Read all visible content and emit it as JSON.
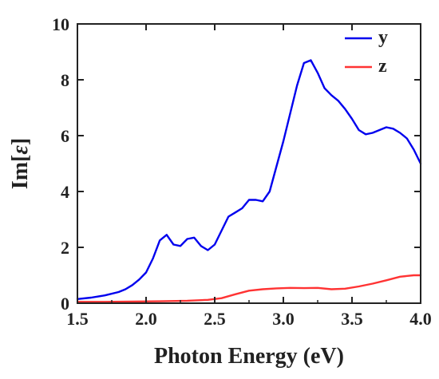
{
  "chart_data": {
    "type": "line",
    "title": "",
    "xlabel": "Photon Energy (eV)",
    "ylabel": "Im[ε]",
    "ylabel_parts": {
      "prefix": "Im[",
      "symbol": "ε",
      "suffix": "]"
    },
    "xlim": [
      1.5,
      4.0
    ],
    "ylim": [
      0,
      10
    ],
    "x_ticks": [
      "1.5",
      "2.0",
      "2.5",
      "3.0",
      "3.5",
      "4.0"
    ],
    "y_ticks": [
      "0",
      "2",
      "4",
      "6",
      "8",
      "10"
    ],
    "grid": false,
    "legend_position": "top-right",
    "series": [
      {
        "name": "y",
        "color": "#0000ee",
        "x": [
          1.5,
          1.6,
          1.7,
          1.8,
          1.85,
          1.9,
          1.95,
          2.0,
          2.05,
          2.1,
          2.15,
          2.2,
          2.25,
          2.3,
          2.35,
          2.4,
          2.45,
          2.5,
          2.55,
          2.6,
          2.65,
          2.7,
          2.75,
          2.8,
          2.85,
          2.9,
          2.95,
          3.0,
          3.05,
          3.1,
          3.15,
          3.2,
          3.25,
          3.3,
          3.35,
          3.4,
          3.45,
          3.5,
          3.55,
          3.6,
          3.65,
          3.7,
          3.75,
          3.8,
          3.85,
          3.9,
          3.95,
          4.0
        ],
        "values": [
          0.15,
          0.2,
          0.28,
          0.4,
          0.5,
          0.65,
          0.85,
          1.1,
          1.6,
          2.25,
          2.45,
          2.1,
          2.05,
          2.3,
          2.35,
          2.05,
          1.9,
          2.1,
          2.6,
          3.1,
          3.25,
          3.4,
          3.7,
          3.7,
          3.65,
          4.0,
          4.9,
          5.8,
          6.8,
          7.8,
          8.6,
          8.7,
          8.25,
          7.7,
          7.45,
          7.25,
          6.95,
          6.6,
          6.2,
          6.05,
          6.1,
          6.2,
          6.3,
          6.25,
          6.1,
          5.9,
          5.5,
          5.0
        ]
      },
      {
        "name": "z",
        "color": "#ff3333",
        "x": [
          1.5,
          1.7,
          1.9,
          2.1,
          2.3,
          2.45,
          2.55,
          2.65,
          2.75,
          2.85,
          2.95,
          3.05,
          3.15,
          3.25,
          3.35,
          3.45,
          3.55,
          3.65,
          3.75,
          3.85,
          3.95,
          4.0
        ],
        "values": [
          0.05,
          0.05,
          0.06,
          0.07,
          0.09,
          0.12,
          0.18,
          0.32,
          0.45,
          0.5,
          0.53,
          0.55,
          0.54,
          0.55,
          0.5,
          0.52,
          0.6,
          0.7,
          0.82,
          0.95,
          1.0,
          1.0
        ]
      }
    ]
  }
}
